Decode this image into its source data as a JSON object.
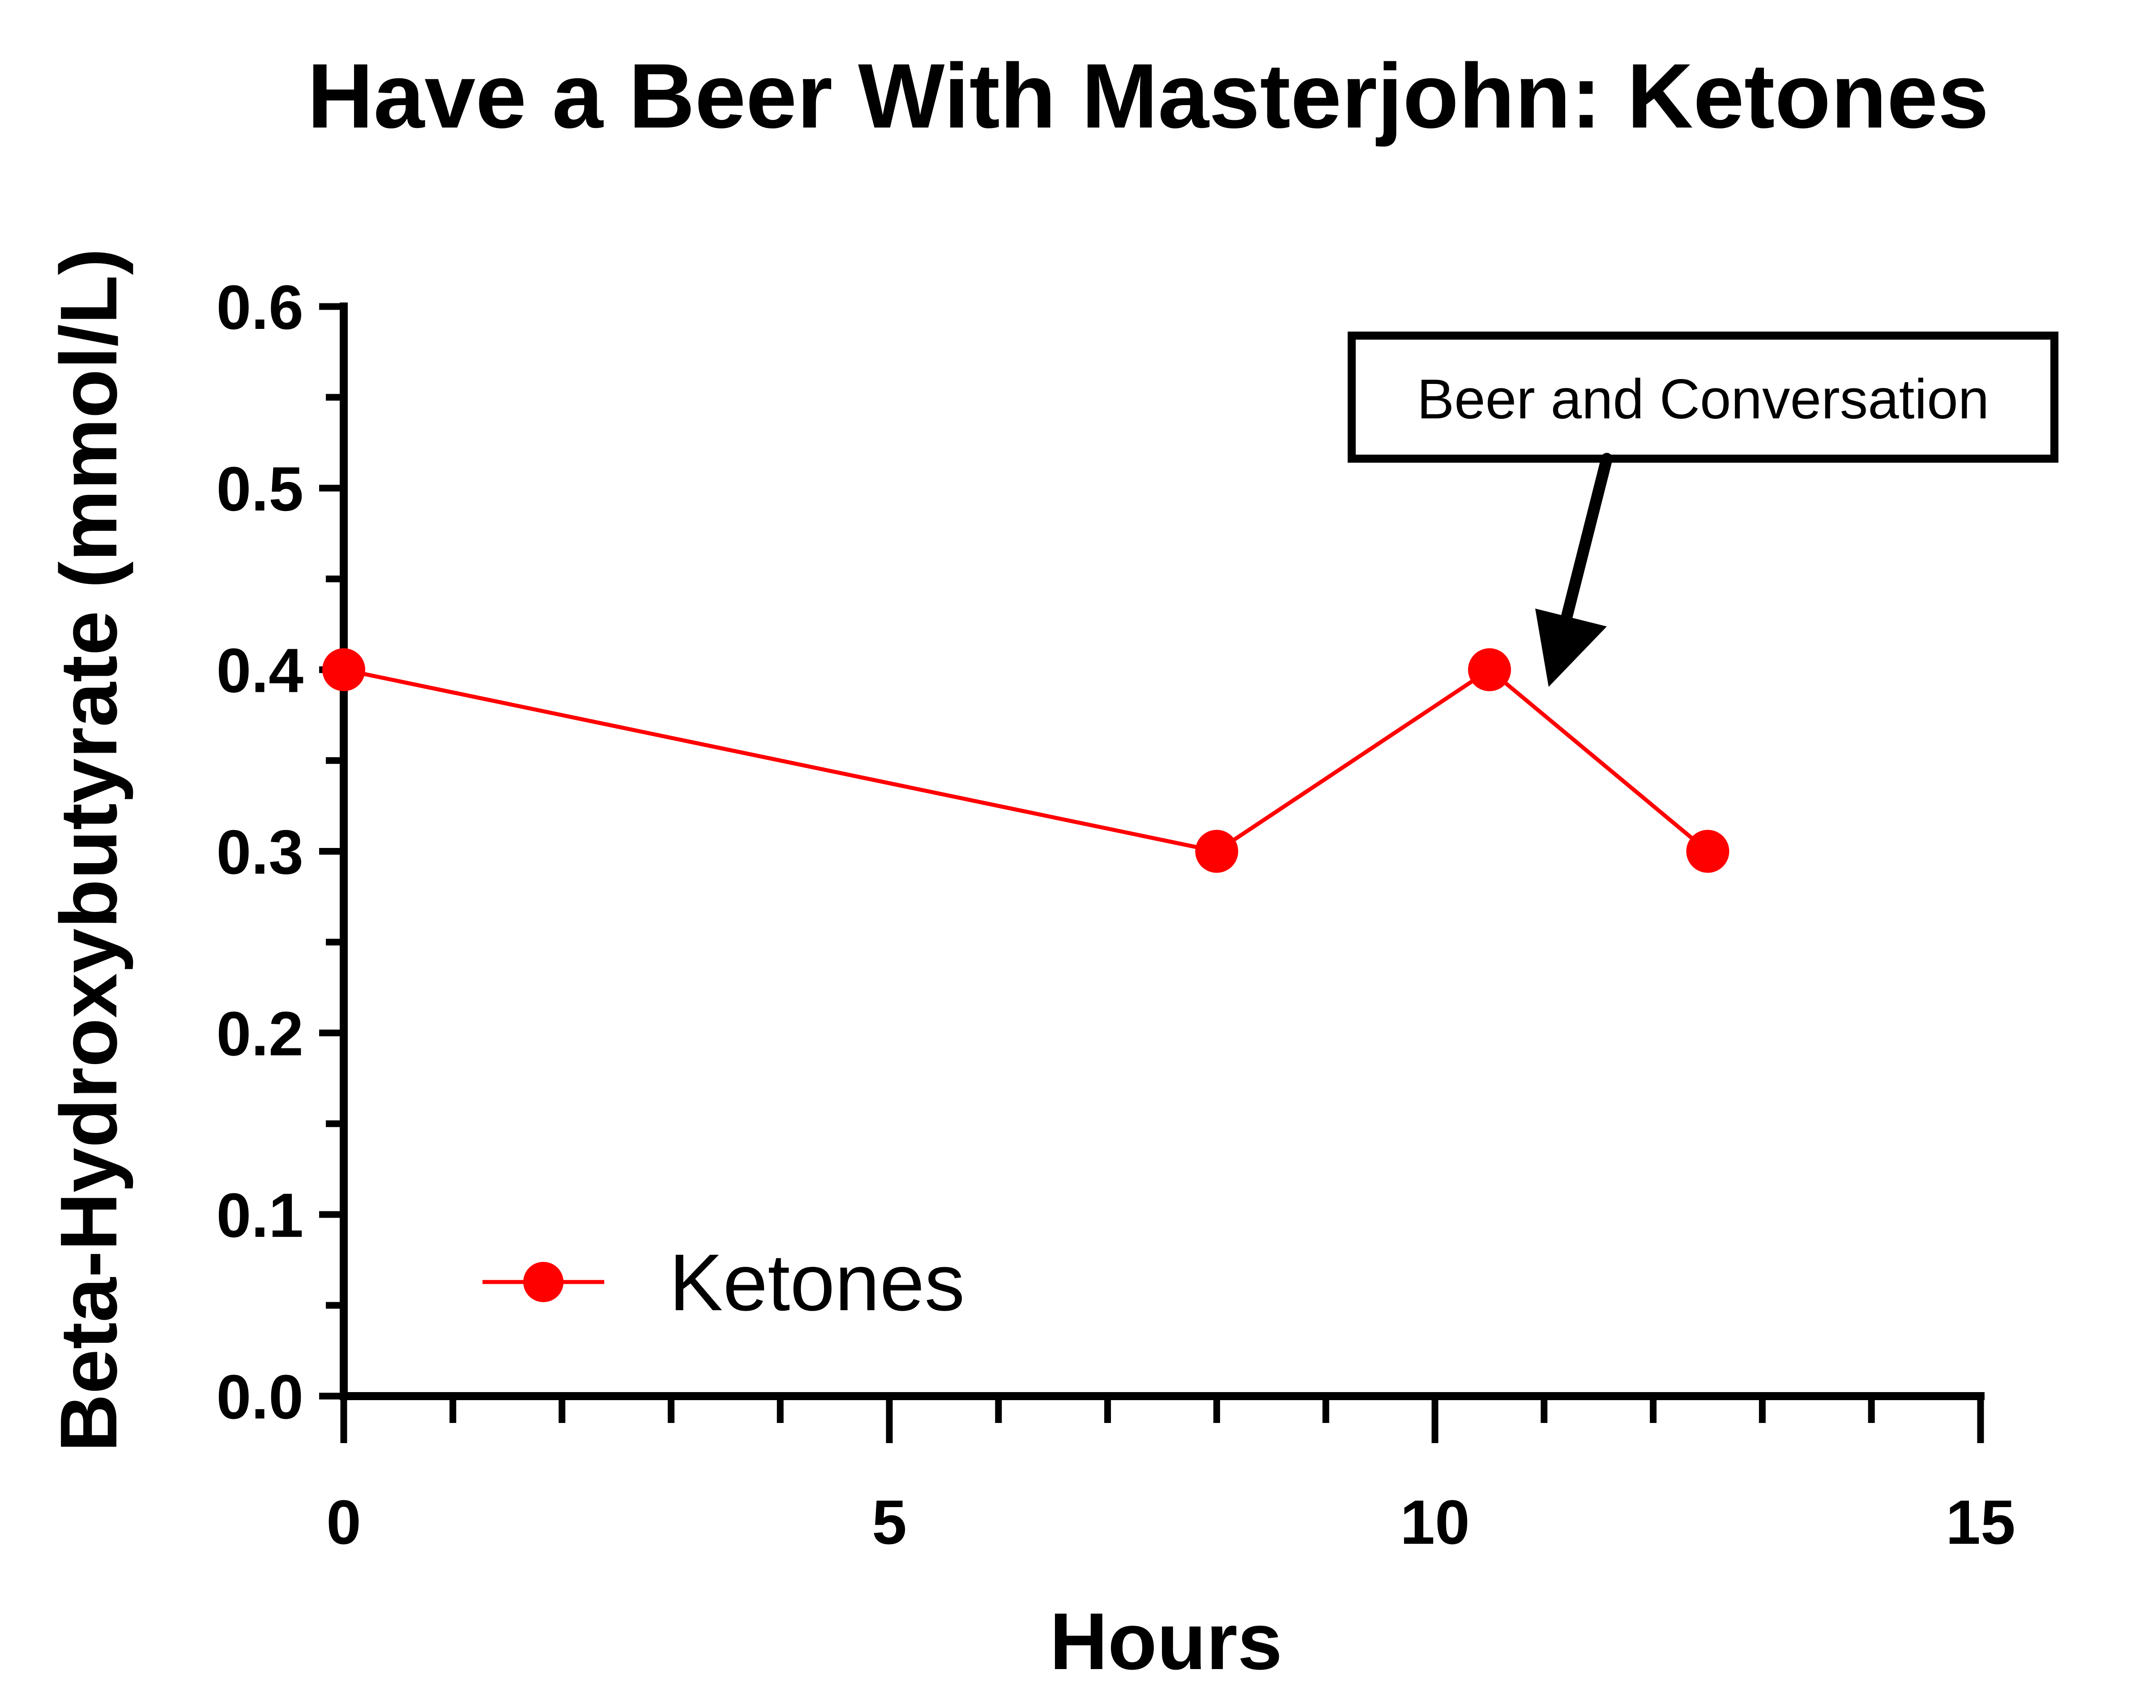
{
  "chart_data": {
    "type": "line",
    "title": "Have a Beer With Masterjohn: Ketones",
    "xlabel": "Hours",
    "ylabel": "Beta-Hydroxybutyrate (mmol/L)",
    "xlim": [
      0,
      15
    ],
    "ylim": [
      0,
      0.6
    ],
    "x_ticks": [
      "0",
      "5",
      "10",
      "15"
    ],
    "x_tick_values": [
      0,
      5,
      10,
      15
    ],
    "x_minor_step": 1,
    "y_ticks": [
      "0.0",
      "0.1",
      "0.2",
      "0.3",
      "0.4",
      "0.5",
      "0.6"
    ],
    "y_tick_values": [
      0,
      0.1,
      0.2,
      0.3,
      0.4,
      0.5,
      0.6
    ],
    "y_minor_step": 0.05,
    "grid": false,
    "legend": {
      "position": "bottom-left"
    },
    "series": [
      {
        "name": "Ketones",
        "color": "#ff0000",
        "marker": "circle",
        "x": [
          0,
          8,
          10.5,
          12.5
        ],
        "y": [
          0.4,
          0.3,
          0.4,
          0.3
        ]
      }
    ],
    "annotations": [
      {
        "text": "Beer and Conversation",
        "arrow_to_x": 11,
        "arrow_to_y": 0.385
      }
    ]
  }
}
